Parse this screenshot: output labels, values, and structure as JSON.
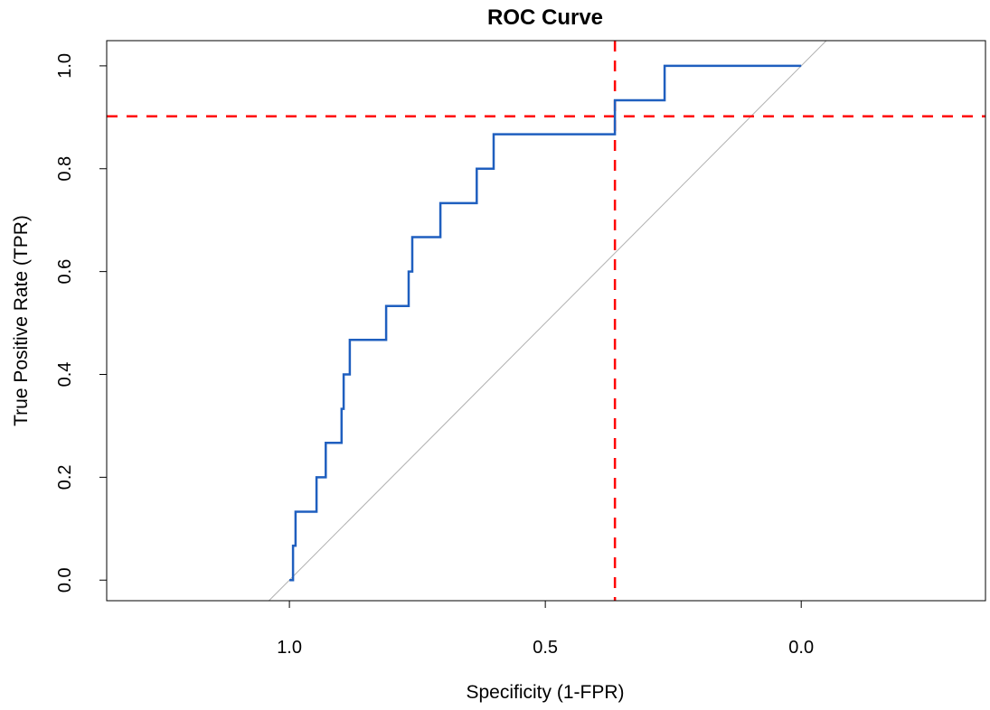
{
  "chart_data": {
    "type": "line",
    "title": "ROC Curve",
    "xlabel": "Specificity (1-FPR)",
    "ylabel": "True Positive Rate (TPR)",
    "xlim": [
      1.357,
      -0.36
    ],
    "ylim": [
      -0.04,
      1.049
    ],
    "x_reversed": true,
    "grid": false,
    "x_ticks": [
      1.0,
      0.5,
      0.0
    ],
    "x_tick_labels": [
      "1.0",
      "0.5",
      "0.0"
    ],
    "y_ticks": [
      0.0,
      0.2,
      0.4,
      0.6,
      0.8,
      1.0
    ],
    "y_tick_labels": [
      "0.0",
      "0.2",
      "0.4",
      "0.6",
      "0.8",
      "1.0"
    ],
    "series": [
      {
        "color": "#1f5fbf",
        "points": [
          [
            1,
            0
          ],
          [
            0.993,
            0
          ],
          [
            0.993,
            0.067
          ],
          [
            0.988,
            0.067
          ],
          [
            0.988,
            0.133
          ],
          [
            0.947,
            0.133
          ],
          [
            0.947,
            0.2
          ],
          [
            0.929,
            0.2
          ],
          [
            0.929,
            0.267
          ],
          [
            0.898,
            0.267
          ],
          [
            0.898,
            0.333
          ],
          [
            0.894,
            0.333
          ],
          [
            0.894,
            0.4
          ],
          [
            0.882,
            0.4
          ],
          [
            0.882,
            0.467
          ],
          [
            0.811,
            0.467
          ],
          [
            0.811,
            0.533
          ],
          [
            0.767,
            0.533
          ],
          [
            0.767,
            0.6
          ],
          [
            0.76,
            0.6
          ],
          [
            0.76,
            0.667
          ],
          [
            0.705,
            0.667
          ],
          [
            0.705,
            0.733
          ],
          [
            0.634,
            0.733
          ],
          [
            0.634,
            0.8
          ],
          [
            0.601,
            0.8
          ],
          [
            0.601,
            0.867
          ],
          [
            0.364,
            0.867
          ],
          [
            0.364,
            0.933
          ],
          [
            0.267,
            0.933
          ],
          [
            0.267,
            1
          ],
          [
            0,
            1
          ]
        ]
      }
    ],
    "reference_line": {
      "type": "diagonal",
      "description_formula": "TPR = 1 - Specificity",
      "color": "#b0b0b0"
    },
    "threshold_lines": {
      "vertical_specificity": 0.364,
      "horizontal_tpr": 0.902,
      "color": "#ff0000",
      "style": "dashed"
    }
  }
}
